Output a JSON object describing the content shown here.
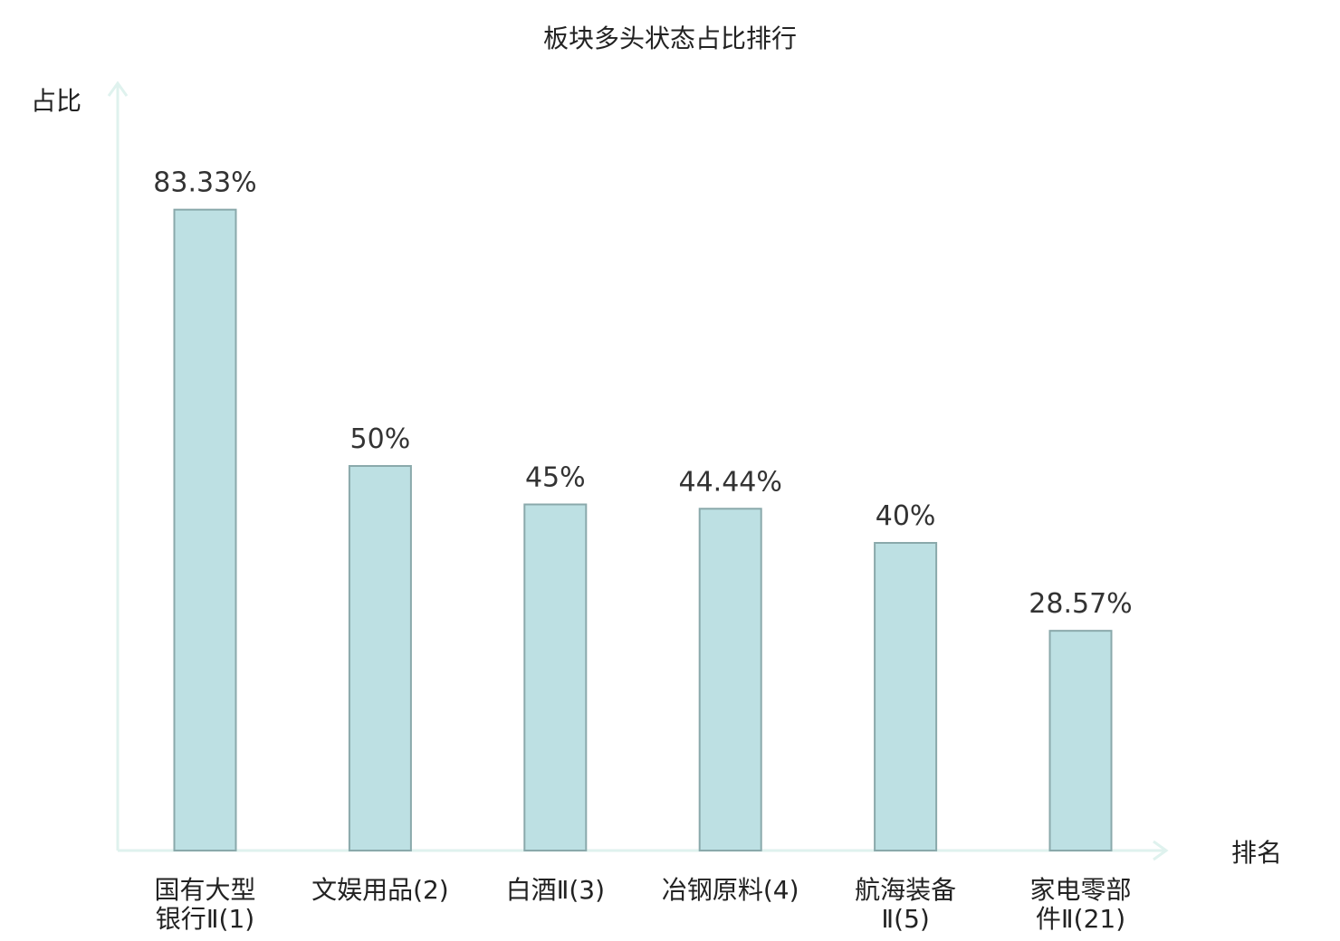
{
  "chart_data": {
    "type": "bar",
    "title": "板块多头状态占比排行",
    "ylabel": "占比",
    "xlabel": "排名",
    "categories": [
      [
        "国有大型",
        "银行Ⅱ(1)"
      ],
      [
        "文娱用品(2)"
      ],
      [
        "白酒Ⅱ(3)"
      ],
      [
        "冶钢原料(4)"
      ],
      [
        "航海装备",
        "Ⅱ(5)"
      ],
      [
        "家电零部",
        "件Ⅱ(21)"
      ]
    ],
    "values": [
      83.33,
      50,
      45,
      44.44,
      40,
      28.57
    ],
    "value_labels": [
      "83.33%",
      "50%",
      "45%",
      "44.44%",
      "40%",
      "28.57%"
    ],
    "highlight_index": 5,
    "ylim": [
      0,
      100
    ],
    "grid": false,
    "legend": "none",
    "colors": {
      "bar_fill": "#bde0e3",
      "bar_stroke": "#8aa9ab",
      "axis": "#dff2ee",
      "highlight_text": "#e02020",
      "text": "#222222"
    }
  }
}
